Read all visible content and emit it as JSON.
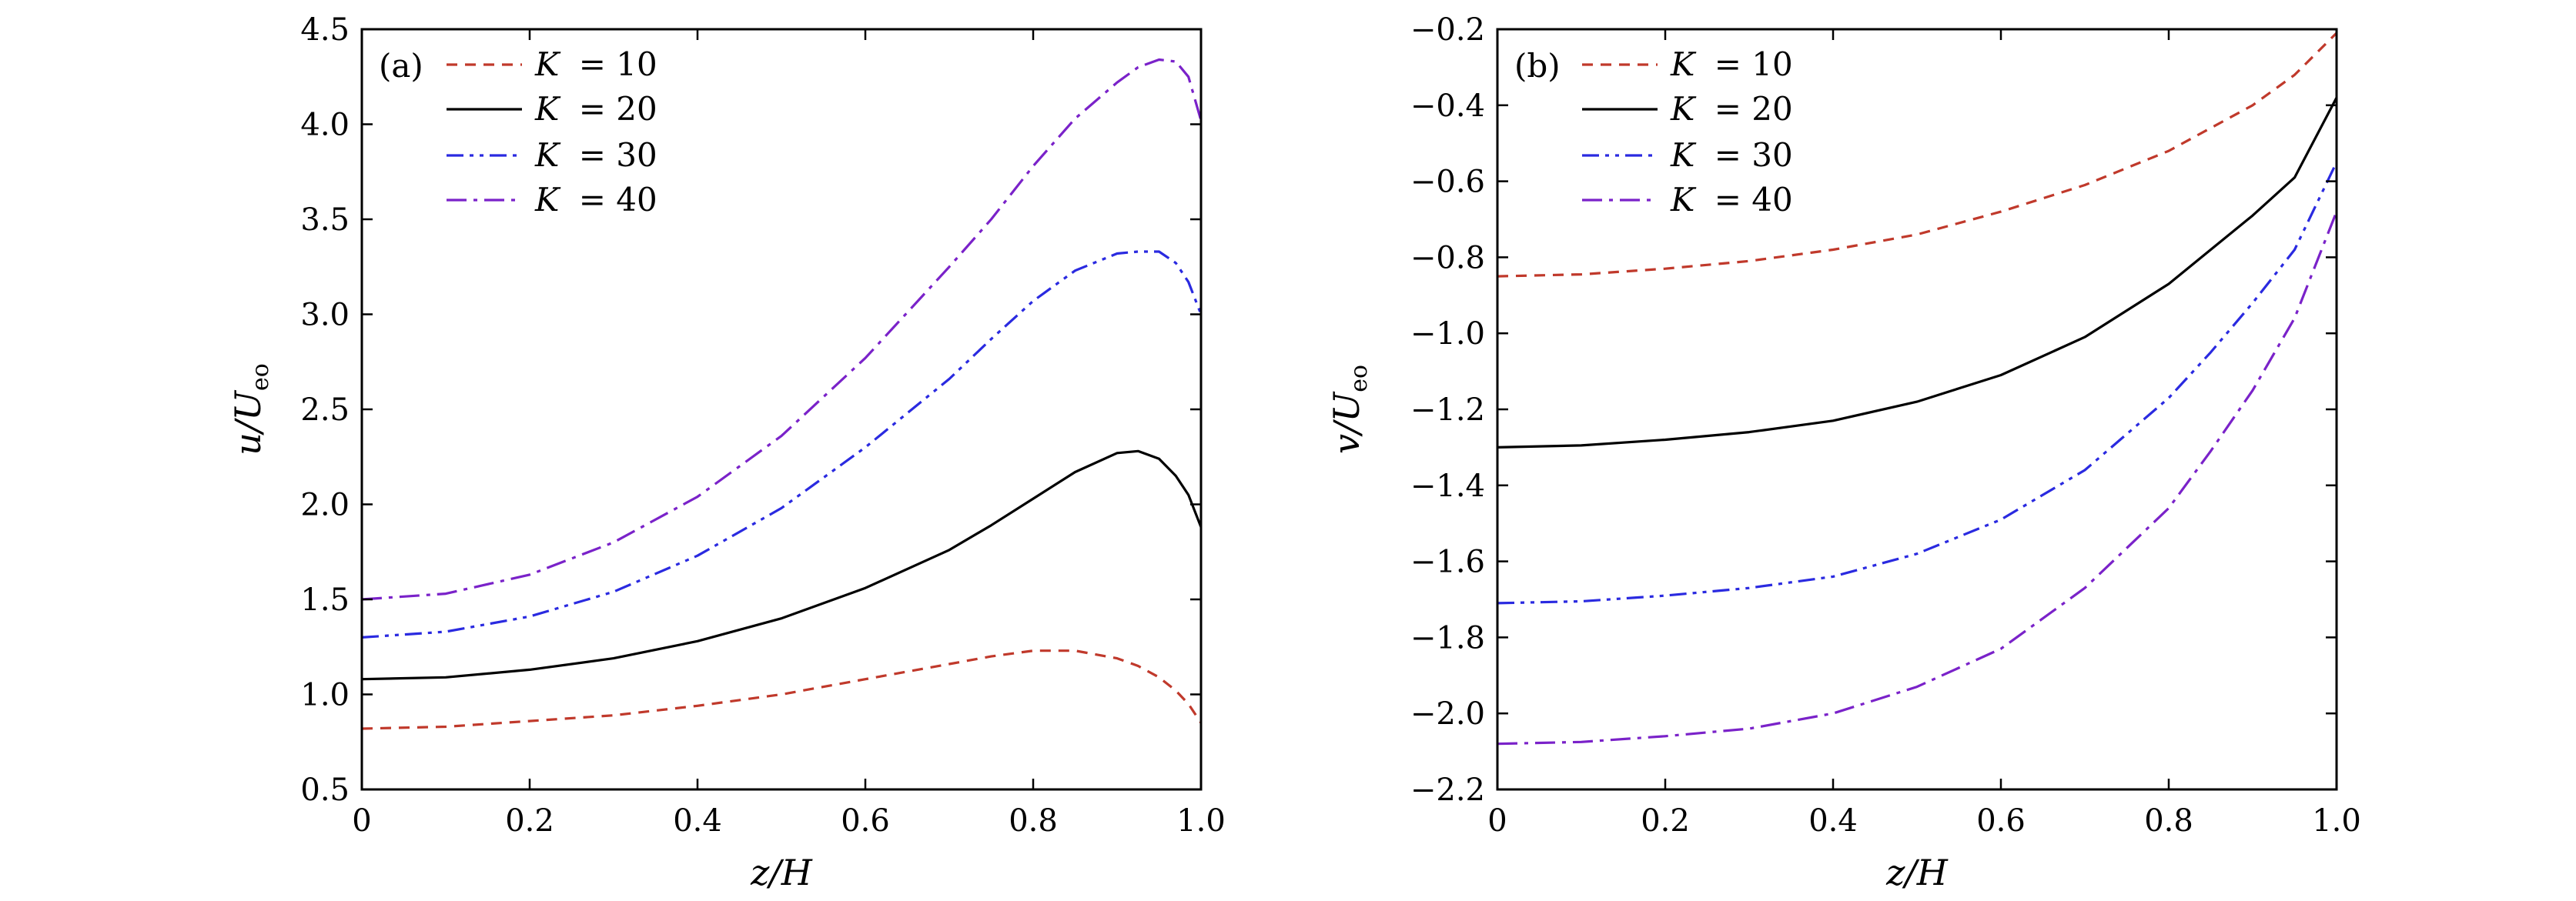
{
  "chart_data": [
    {
      "type": "line",
      "panel_label": "(a)",
      "xlabel": "z/H",
      "ylabel": {
        "main": "u/U",
        "sub": "eo"
      },
      "xlim": [
        0,
        1
      ],
      "ylim": [
        0.5,
        4.5
      ],
      "xticks": [
        0,
        0.2,
        0.4,
        0.6,
        0.8,
        1.0
      ],
      "xtick_labels": [
        "0",
        "0.2",
        "0.4",
        "0.6",
        "0.8",
        "1.0"
      ],
      "yticks": [
        0.5,
        1.0,
        1.5,
        2.0,
        2.5,
        3.0,
        3.5,
        4.0,
        4.5
      ],
      "ytick_labels": [
        "0.5",
        "1.0",
        "1.5",
        "2.0",
        "2.5",
        "3.0",
        "3.5",
        "4.0",
        "4.5"
      ],
      "grid": false,
      "legend_position": "top-left",
      "x": [
        0,
        0.1,
        0.2,
        0.3,
        0.4,
        0.5,
        0.6,
        0.7,
        0.75,
        0.8,
        0.85,
        0.9,
        0.925,
        0.95,
        0.97,
        0.985,
        1.0
      ],
      "series": [
        {
          "name": "K = 10",
          "label_lhs": "K",
          "label_rhs": "= 10",
          "color": "#c0392b",
          "dash": "dashed",
          "values": [
            0.82,
            0.83,
            0.86,
            0.89,
            0.94,
            1.0,
            1.08,
            1.16,
            1.2,
            1.23,
            1.23,
            1.19,
            1.15,
            1.09,
            1.02,
            0.95,
            0.85
          ]
        },
        {
          "name": "K = 20",
          "label_lhs": "K",
          "label_rhs": "= 20",
          "color": "#000000",
          "dash": "solid",
          "values": [
            1.08,
            1.09,
            1.13,
            1.19,
            1.28,
            1.4,
            1.56,
            1.76,
            1.89,
            2.03,
            2.17,
            2.27,
            2.28,
            2.24,
            2.15,
            2.05,
            1.88
          ]
        },
        {
          "name": "K = 30",
          "label_lhs": "K",
          "label_rhs": "= 30",
          "color": "#2a2ae0",
          "dash": "dashdotdot",
          "values": [
            1.3,
            1.33,
            1.41,
            1.54,
            1.73,
            1.98,
            2.3,
            2.66,
            2.87,
            3.07,
            3.23,
            3.32,
            3.33,
            3.33,
            3.27,
            3.17,
            3.0
          ]
        },
        {
          "name": "K = 40",
          "label_lhs": "K",
          "label_rhs": "= 40",
          "color": "#7a22c9",
          "dash": "dashdot",
          "values": [
            1.5,
            1.53,
            1.63,
            1.8,
            2.04,
            2.36,
            2.77,
            3.25,
            3.5,
            3.78,
            4.03,
            4.22,
            4.3,
            4.34,
            4.33,
            4.25,
            4.02
          ]
        }
      ]
    },
    {
      "type": "line",
      "panel_label": "(b)",
      "xlabel": "z/H",
      "ylabel": {
        "main": "v/U",
        "sub": "eo"
      },
      "xlim": [
        0,
        1
      ],
      "ylim": [
        -2.2,
        -0.2
      ],
      "xticks": [
        0,
        0.2,
        0.4,
        0.6,
        0.8,
        1.0
      ],
      "xtick_labels": [
        "0",
        "0.2",
        "0.4",
        "0.6",
        "0.8",
        "1.0"
      ],
      "yticks": [
        -2.2,
        -2.0,
        -1.8,
        -1.6,
        -1.4,
        -1.2,
        -1.0,
        -0.8,
        -0.6,
        -0.4,
        -0.2
      ],
      "ytick_labels": [
        "−2.2",
        "−2.0",
        "−1.8",
        "−1.6",
        "−1.4",
        "−1.2",
        "−1.0",
        "−0.8",
        "−0.6",
        "−0.4",
        "−0.2"
      ],
      "grid": false,
      "legend_position": "top-left",
      "x": [
        0,
        0.1,
        0.2,
        0.3,
        0.4,
        0.5,
        0.6,
        0.7,
        0.8,
        0.85,
        0.9,
        0.95,
        1.0
      ],
      "series": [
        {
          "name": "K = 10",
          "label_lhs": "K",
          "label_rhs": "= 10",
          "color": "#c0392b",
          "dash": "dashed",
          "values": [
            -0.85,
            -0.845,
            -0.83,
            -0.81,
            -0.78,
            -0.74,
            -0.68,
            -0.61,
            -0.52,
            -0.46,
            -0.4,
            -0.32,
            -0.21
          ]
        },
        {
          "name": "K = 20",
          "label_lhs": "K",
          "label_rhs": "= 20",
          "color": "#000000",
          "dash": "solid",
          "values": [
            -1.3,
            -1.295,
            -1.28,
            -1.26,
            -1.23,
            -1.18,
            -1.11,
            -1.01,
            -0.87,
            -0.78,
            -0.69,
            -0.59,
            -0.38
          ]
        },
        {
          "name": "K = 30",
          "label_lhs": "K",
          "label_rhs": "= 30",
          "color": "#2a2ae0",
          "dash": "dashdotdot",
          "values": [
            -1.71,
            -1.705,
            -1.69,
            -1.67,
            -1.64,
            -1.58,
            -1.49,
            -1.36,
            -1.17,
            -1.05,
            -0.92,
            -0.78,
            -0.55
          ]
        },
        {
          "name": "K = 40",
          "label_lhs": "K",
          "label_rhs": "= 40",
          "color": "#7a22c9",
          "dash": "dashdot",
          "values": [
            -2.08,
            -2.075,
            -2.06,
            -2.04,
            -2.0,
            -1.93,
            -1.83,
            -1.67,
            -1.46,
            -1.31,
            -1.15,
            -0.96,
            -0.68
          ]
        }
      ]
    }
  ]
}
